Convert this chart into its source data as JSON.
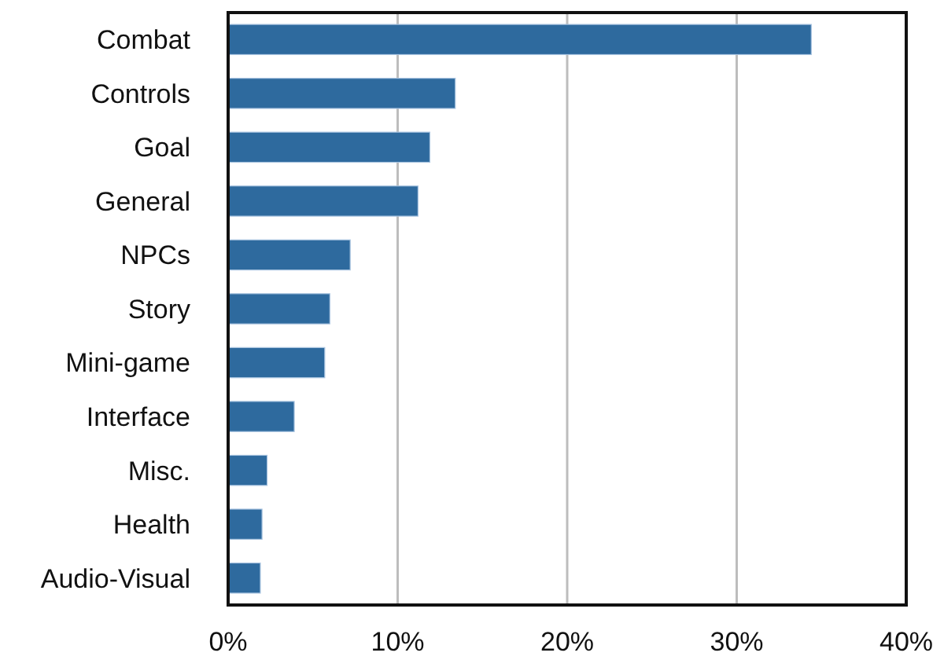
{
  "chart_data": {
    "type": "bar",
    "orientation": "horizontal",
    "categories": [
      "Combat",
      "Controls",
      "Goal",
      "General",
      "NPCs",
      "Story",
      "Mini-game",
      "Interface",
      "Misc.",
      "Health",
      "Audio-Visual"
    ],
    "values": [
      34.4,
      13.4,
      11.9,
      11.2,
      7.2,
      6.0,
      5.7,
      3.9,
      2.3,
      2.0,
      1.9
    ],
    "color": "#2e6a9e",
    "xlim": [
      0,
      40
    ],
    "xticks": [
      {
        "value": 0,
        "label": "0%"
      },
      {
        "value": 10,
        "label": "10%"
      },
      {
        "value": 20,
        "label": "20%"
      },
      {
        "value": 30,
        "label": "30%"
      },
      {
        "value": 40,
        "label": "40%"
      }
    ],
    "grid": "x"
  }
}
